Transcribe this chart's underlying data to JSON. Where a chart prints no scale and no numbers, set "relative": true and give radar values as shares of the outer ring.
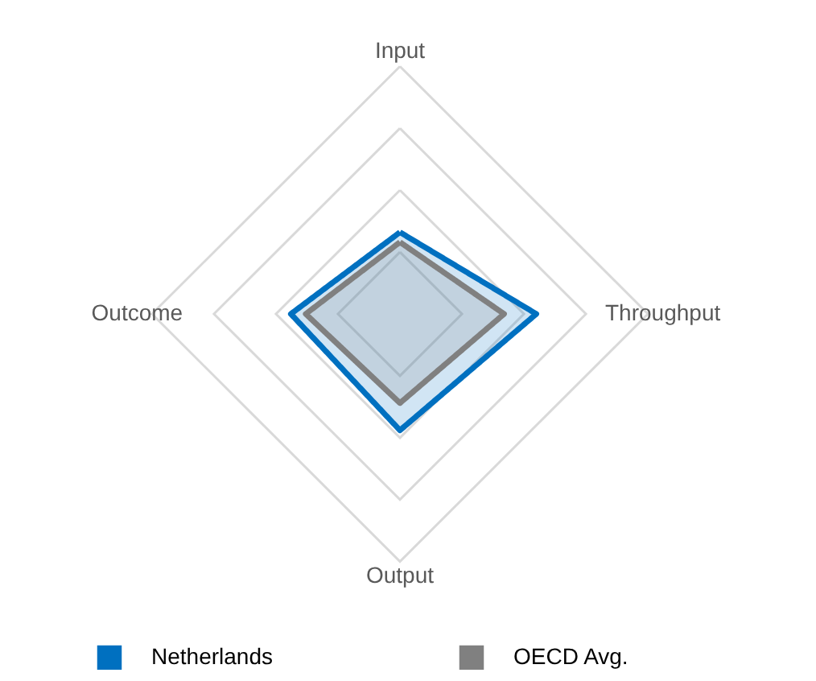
{
  "chart_data": {
    "type": "radar",
    "relative": true,
    "categories": [
      "Input",
      "Throughput",
      "Output",
      "Outcome"
    ],
    "series": [
      {
        "name": "Netherlands",
        "color": "#0070c0",
        "values": [
          0.33,
          0.55,
          0.47,
          0.44
        ]
      },
      {
        "name": "OECD Avg.",
        "color": "#808080",
        "values": [
          0.29,
          0.42,
          0.36,
          0.38
        ]
      }
    ],
    "grid": true,
    "legend": "bottom",
    "marker": "none",
    "line_style": "solid"
  }
}
